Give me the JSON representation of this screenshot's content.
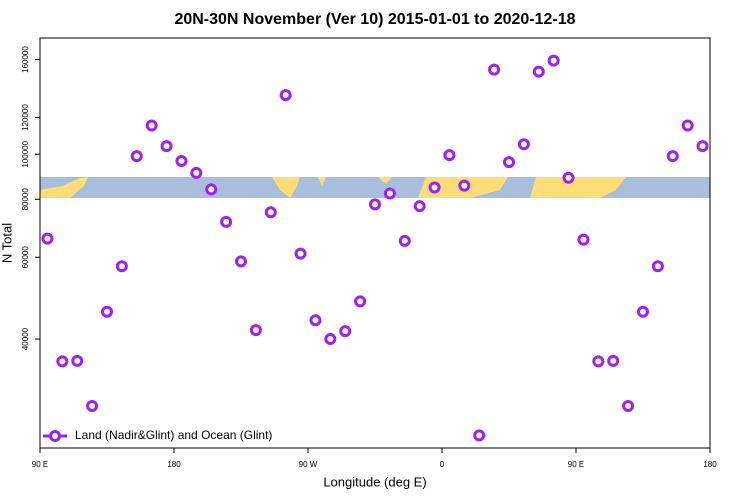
{
  "chart_data": {
    "type": "scatter",
    "title": "20N-30N November (Ver 10)   2015-01-01 to 2020-12-18",
    "xlabel": "Longitude (deg E)",
    "ylabel": "N Total",
    "xlim": [
      90,
      540
    ],
    "xticks": [
      {
        "value": 90,
        "label": "90 E"
      },
      {
        "value": 180,
        "label": "180"
      },
      {
        "value": 270,
        "label": "90 W"
      },
      {
        "value": 360,
        "label": "0"
      },
      {
        "value": 450,
        "label": "90 E"
      },
      {
        "value": 540,
        "label": "180"
      }
    ],
    "ylim": [
      23300,
      178000
    ],
    "yscale": "log",
    "yticks": [
      40000,
      60000,
      80000,
      100000,
      120000,
      160000
    ],
    "legend": "bottom-left",
    "series": [
      {
        "name": "Land (Nadir&Glint) and Ocean (Glint)",
        "color": "#a020f0",
        "x": [
          95,
          105,
          115,
          125,
          135,
          145,
          155,
          165,
          175,
          185,
          195,
          205,
          215,
          225,
          235,
          245,
          255,
          265,
          275,
          285,
          295,
          305,
          315,
          325,
          335,
          345,
          355,
          365,
          375,
          385,
          395,
          405,
          415,
          425,
          435,
          445,
          455,
          465,
          475,
          485,
          495,
          505,
          515,
          525,
          535
        ],
        "values": [
          65800,
          35800,
          35900,
          28700,
          45800,
          57400,
          99100,
          115300,
          104100,
          96700,
          91200,
          84000,
          71500,
          58800,
          41800,
          75000,
          134100,
          61100,
          43900,
          40000,
          41600,
          48200,
          78000,
          82300,
          65100,
          77300,
          84800,
          99600,
          85600,
          24800,
          152200,
          96200,
          105100,
          150700,
          159100,
          89000,
          65500,
          35800,
          35900,
          28700,
          45800,
          57400,
          99100,
          115300,
          104100
        ]
      }
    ]
  }
}
